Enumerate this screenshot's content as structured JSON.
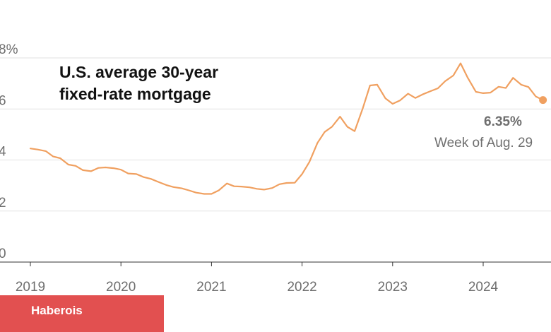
{
  "chart_data": {
    "type": "line",
    "title_lines": [
      "U.S. average 30-year",
      "fixed-rate mortgage"
    ],
    "xlabel": "",
    "ylabel": "",
    "y_ticks": [
      "8%",
      "6",
      "4",
      "2",
      "0"
    ],
    "y_tick_values": [
      8,
      6,
      4,
      2,
      0
    ],
    "x_ticks": [
      "2019",
      "2020",
      "2021",
      "2022",
      "2023",
      "2024"
    ],
    "x_tick_values": [
      2019,
      2020,
      2021,
      2022,
      2023,
      2024
    ],
    "xlim": [
      2018.8,
      2024.8
    ],
    "ylim": [
      0,
      8
    ],
    "grid": true,
    "series": [
      {
        "color": "#f0a060",
        "x": [
          2019.0,
          2019.08,
          2019.17,
          2019.25,
          2019.33,
          2019.42,
          2019.5,
          2019.58,
          2019.67,
          2019.75,
          2019.83,
          2019.92,
          2020.0,
          2020.08,
          2020.17,
          2020.25,
          2020.33,
          2020.42,
          2020.5,
          2020.58,
          2020.67,
          2020.75,
          2020.83,
          2020.92,
          2021.0,
          2021.08,
          2021.17,
          2021.25,
          2021.33,
          2021.42,
          2021.5,
          2021.58,
          2021.67,
          2021.75,
          2021.83,
          2021.92,
          2022.0,
          2022.08,
          2022.17,
          2022.25,
          2022.33,
          2022.42,
          2022.5,
          2022.58,
          2022.67,
          2022.75,
          2022.83,
          2022.92,
          2023.0,
          2023.08,
          2023.17,
          2023.25,
          2023.33,
          2023.42,
          2023.5,
          2023.58,
          2023.67,
          2023.75,
          2023.83,
          2023.92,
          2024.0,
          2024.08,
          2024.17,
          2024.25,
          2024.33,
          2024.42,
          2024.5,
          2024.58,
          2024.66
        ],
        "values": [
          4.45,
          4.41,
          4.35,
          4.14,
          4.07,
          3.82,
          3.77,
          3.6,
          3.56,
          3.69,
          3.71,
          3.68,
          3.62,
          3.47,
          3.45,
          3.33,
          3.26,
          3.13,
          3.02,
          2.94,
          2.89,
          2.81,
          2.72,
          2.67,
          2.67,
          2.81,
          3.08,
          2.97,
          2.96,
          2.93,
          2.87,
          2.84,
          2.9,
          3.05,
          3.1,
          3.11,
          3.45,
          3.92,
          4.67,
          5.1,
          5.3,
          5.7,
          5.3,
          5.13,
          6.02,
          6.92,
          6.95,
          6.42,
          6.2,
          6.33,
          6.6,
          6.43,
          6.57,
          6.7,
          6.81,
          7.09,
          7.31,
          7.79,
          7.22,
          6.67,
          6.62,
          6.64,
          6.87,
          6.82,
          7.22,
          6.95,
          6.86,
          6.49,
          6.35
        ]
      }
    ],
    "annotation": {
      "value": "6.35%",
      "label": "Week of Aug. 29",
      "x": 2024.66,
      "y": 6.35
    }
  },
  "badge": {
    "label": "Haberois"
  }
}
